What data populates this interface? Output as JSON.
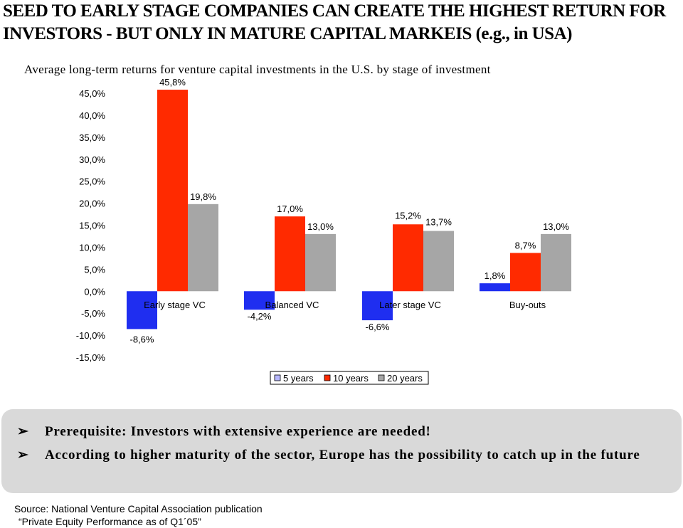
{
  "headline": {
    "line1": "SEED TO EARLY STAGE COMPANIES CAN CREATE THE HIGHEST RETURN FOR",
    "line2": "INVESTORS - BUT ONLY IN MATURE CAPITAL MARKEIS (e.g., in USA)"
  },
  "chart_data": {
    "type": "bar",
    "title": "Average long-term returns for venture capital investments in the U.S. by stage of investment",
    "categories": [
      "Early stage VC",
      "Balanced VC",
      "Later stage VC",
      "Buy-outs"
    ],
    "series": [
      {
        "name": "5 years",
        "color": "#1f2ef0",
        "values": [
          -8.6,
          -4.2,
          -6.6,
          1.8
        ],
        "labels": [
          "-8,6%",
          "-4,2%",
          "-6,6%",
          "1,8%"
        ]
      },
      {
        "name": "10 years",
        "color": "#ff2a00",
        "values": [
          45.8,
          17.0,
          15.2,
          8.7
        ],
        "labels": [
          "45,8%",
          "17,0%",
          "15,2%",
          "8,7%"
        ]
      },
      {
        "name": "20 years",
        "color": "#a6a6a6",
        "values": [
          19.8,
          13.0,
          13.7,
          13.0
        ],
        "labels": [
          "19,8%",
          "13,0%",
          "13,7%",
          "13,0%"
        ]
      }
    ],
    "yticks": [
      45,
      40,
      35,
      30,
      25,
      20,
      15,
      10,
      5,
      0,
      -5,
      -10,
      -15
    ],
    "ytick_labels": [
      "45,0%",
      "40,0%",
      "35,0%",
      "30,0%",
      "25,0%",
      "20,0%",
      "15,0%",
      "10,0%",
      "5,0%",
      "0,0%",
      "-5,0%",
      "-10,0%",
      "-15,0%"
    ],
    "ylim": [
      -15,
      45
    ],
    "grid": false,
    "legend": "bottom"
  },
  "bullets": [
    {
      "arrow": "➢",
      "text": "Prerequisite: Investors with extensive experience are needed!"
    },
    {
      "arrow": "➢",
      "text": "According to higher maturity of the sector, Europe has the possibility to catch up in the future"
    }
  ],
  "source": {
    "line1": "Source: National Venture Capital Association publication",
    "line2": "“Private Equity Performance as of Q1´05”"
  }
}
